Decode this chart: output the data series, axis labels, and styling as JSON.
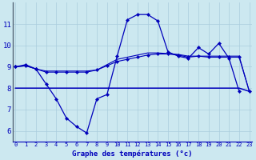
{
  "title": "Graphe des températures (°c)",
  "background_color": "#cce8f0",
  "grid_color": "#aaccdd",
  "line_color": "#0000bb",
  "ylim": [
    5.5,
    12.0
  ],
  "xlim": [
    0,
    23
  ],
  "yticks": [
    6,
    7,
    8,
    9,
    10,
    11
  ],
  "xticks": [
    0,
    1,
    2,
    3,
    4,
    5,
    6,
    7,
    8,
    9,
    10,
    11,
    12,
    13,
    14,
    15,
    16,
    17,
    18,
    19,
    20,
    21,
    22,
    23
  ],
  "curve1": [
    9.0,
    9.1,
    8.9,
    8.2,
    7.5,
    6.6,
    6.2,
    5.9,
    7.5,
    7.7,
    9.5,
    11.2,
    11.45,
    11.45,
    11.15,
    9.7,
    9.5,
    9.4,
    9.9,
    9.6,
    10.1,
    9.4,
    7.85,
    null
  ],
  "curve2": [
    9.0,
    9.05,
    8.9,
    8.75,
    8.75,
    8.75,
    8.75,
    8.75,
    8.85,
    9.05,
    9.25,
    9.35,
    9.45,
    9.55,
    9.6,
    9.6,
    9.55,
    9.45,
    9.5,
    9.45,
    9.45,
    9.45,
    9.45,
    7.85
  ],
  "curve3": [
    9.0,
    9.05,
    8.9,
    8.8,
    8.8,
    8.8,
    8.8,
    8.8,
    8.85,
    9.1,
    9.35,
    9.45,
    9.55,
    9.65,
    9.65,
    9.62,
    9.58,
    9.5,
    9.5,
    9.5,
    9.5,
    9.5,
    9.5,
    7.85
  ],
  "curve4": [
    8.0,
    8.0,
    8.0,
    8.0,
    8.0,
    8.0,
    8.0,
    8.0,
    8.0,
    8.0,
    8.0,
    8.0,
    8.0,
    8.0,
    8.0,
    8.0,
    8.0,
    8.0,
    8.0,
    8.0,
    8.0,
    8.0,
    8.0,
    7.85
  ],
  "xlabel_fontsize": 6.5,
  "ylabel_fontsize": 6.5,
  "tick_fontsize": 5.0,
  "lw1": 0.9,
  "lw2": 0.8,
  "lw3": 0.8,
  "lw4": 1.1,
  "marker_size": 2.2
}
